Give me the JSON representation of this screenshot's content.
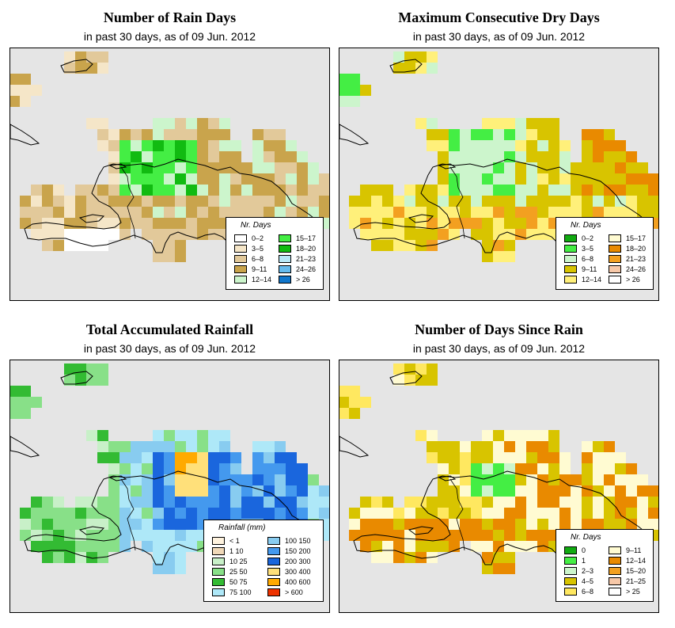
{
  "panels": [
    {
      "title": "Number of Rain Days",
      "subtitle": "in past 30 days, as of  09 Jun. 2012",
      "legend": {
        "title": "Nr. Days",
        "items": [
          {
            "label": "0–2",
            "color": "#ffffff"
          },
          {
            "label": "3–5",
            "color": "#f5e6c8"
          },
          {
            "label": "6–8",
            "color": "#e2c99a"
          },
          {
            "label": "9–11",
            "color": "#c9a44c"
          },
          {
            "label": "12–14",
            "color": "#ccf5cc"
          },
          {
            "label": "15–17",
            "color": "#44ee44"
          },
          {
            "label": "18–20",
            "color": "#11bb11"
          },
          {
            "label": "21–23",
            "color": "#b8e8f8"
          },
          {
            "label": "24–26",
            "color": "#66bbee"
          },
          {
            "label": "> 26",
            "color": "#1177cc"
          }
        ]
      }
    },
    {
      "title": "Maximum Consecutive Dry Days",
      "subtitle": "in past 30 days, as of  09 Jun. 2012",
      "legend": {
        "title": "Nr. Days",
        "items": [
          {
            "label": "0–2",
            "color": "#11aa11"
          },
          {
            "label": "3–5",
            "color": "#44ee44"
          },
          {
            "label": "6–8",
            "color": "#ccf5cc"
          },
          {
            "label": "9–11",
            "color": "#d8c400"
          },
          {
            "label": "12–14",
            "color": "#fff07a"
          },
          {
            "label": "15–17",
            "color": "#fffbd2"
          },
          {
            "label": "18–20",
            "color": "#e98a00"
          },
          {
            "label": "21–23",
            "color": "#f3a020"
          },
          {
            "label": "24–26",
            "color": "#f7c8a8"
          },
          {
            "label": "> 26",
            "color": "#ffffff"
          }
        ]
      }
    },
    {
      "title": "Total Accumulated Rainfall",
      "subtitle": "in past 30 days, as of  09 Jun. 2012",
      "legend": {
        "title": "Rainfall (mm)",
        "items": [
          {
            "label": "< 1",
            "color": "#fff3df"
          },
          {
            "label": "1   10",
            "color": "#f0d8b8"
          },
          {
            "label": "10   25",
            "color": "#c8f0c8"
          },
          {
            "label": "25   50",
            "color": "#88e088"
          },
          {
            "label": "50   75",
            "color": "#33bb33"
          },
          {
            "label": "75   100",
            "color": "#aee8f8"
          },
          {
            "label": "100   150",
            "color": "#88ccf0"
          },
          {
            "label": "150   200",
            "color": "#4499ee"
          },
          {
            "label": "200   300",
            "color": "#1a66dd"
          },
          {
            "label": "300   400",
            "color": "#ffe07a"
          },
          {
            "label": "400   600",
            "color": "#ffaa00"
          },
          {
            "label": "> 600",
            "color": "#ee3300"
          }
        ]
      }
    },
    {
      "title": "Number of Days Since Rain",
      "subtitle": "in past 30 days, as of  09 Jun. 2012",
      "legend": {
        "title": "Nr. Days",
        "items": [
          {
            "label": "0",
            "color": "#11aa11"
          },
          {
            "label": "1",
            "color": "#44ee44"
          },
          {
            "label": "2–3",
            "color": "#ccf5cc"
          },
          {
            "label": "4–5",
            "color": "#d8c400"
          },
          {
            "label": "6–8",
            "color": "#ffe860"
          },
          {
            "label": "9–11",
            "color": "#fffbd2"
          },
          {
            "label": "12–14",
            "color": "#e98a00"
          },
          {
            "label": "15–20",
            "color": "#f3a020"
          },
          {
            "label": "21–25",
            "color": "#f7c8a8"
          },
          {
            "label": "> 25",
            "color": "#ffffff"
          }
        ]
      }
    }
  ]
}
